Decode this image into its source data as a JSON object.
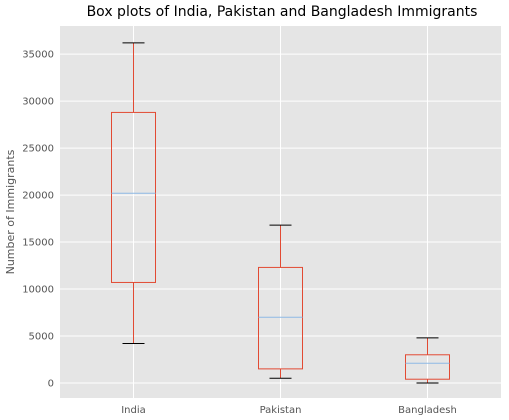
{
  "chart_data": {
    "type": "box",
    "title": "Box plots of India, Pakistan and Bangladesh Immigrants",
    "xlabel": "",
    "ylabel": "Number of Immigrants",
    "ylim": [
      -1600,
      38000
    ],
    "yticks": [
      0,
      5000,
      10000,
      15000,
      20000,
      25000,
      30000,
      35000
    ],
    "grid": true,
    "categories": [
      "India",
      "Pakistan",
      "Bangladesh"
    ],
    "boxes": [
      {
        "name": "India",
        "whisker_low": 4200,
        "q1": 10700,
        "median": 20200,
        "q3": 28800,
        "whisker_high": 36200
      },
      {
        "name": "Pakistan",
        "whisker_low": 500,
        "q1": 1500,
        "median": 7000,
        "q3": 12300,
        "whisker_high": 16800
      },
      {
        "name": "Bangladesh",
        "whisker_low": 0,
        "q1": 400,
        "median": 2100,
        "q3": 3000,
        "whisker_high": 4800
      }
    ],
    "colors": {
      "box": "#E24A33",
      "median": "#8EBAE5",
      "whisker_cap": "#000000",
      "plot_bg": "#E5E5E5",
      "grid": "#FFFFFF"
    }
  }
}
